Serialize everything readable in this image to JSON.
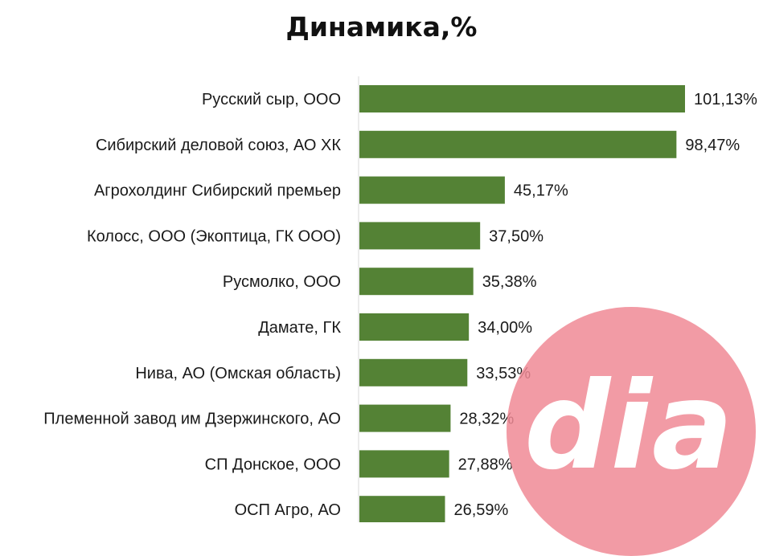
{
  "chart_data": {
    "type": "bar",
    "orientation": "horizontal",
    "title": "Динамика,%",
    "xlabel": "",
    "ylabel": "",
    "categories": [
      "Русский сыр, ООО",
      "Сибирский деловой союз, АО ХК",
      "Агрохолдинг Сибирский премьер",
      "Колосс, ООО (Экоптица, ГК ООО)",
      "Русмолко, ООО",
      "Дамате, ГК",
      "Нива, АО (Омская область)",
      "Племенной завод им Дзержинского, АО",
      "СП Донское, ООО",
      "ОСП Агро, АО"
    ],
    "values": [
      101.13,
      98.47,
      45.17,
      37.5,
      35.38,
      34.0,
      33.53,
      28.32,
      27.88,
      26.59
    ],
    "value_labels": [
      "101,13%",
      "98,47%",
      "45,17%",
      "37,50%",
      "35,38%",
      "34,00%",
      "33,53%",
      "28,32%",
      "27,88%",
      "26,59%"
    ],
    "xlim": [
      0,
      101.13
    ],
    "grid": false,
    "legend": "none",
    "colors": {
      "bar": "#548235",
      "axis": "#d9d9d9",
      "text": "#1a1a1a"
    }
  },
  "watermark": {
    "logo_text": "dia",
    "color": "#f08a95"
  }
}
